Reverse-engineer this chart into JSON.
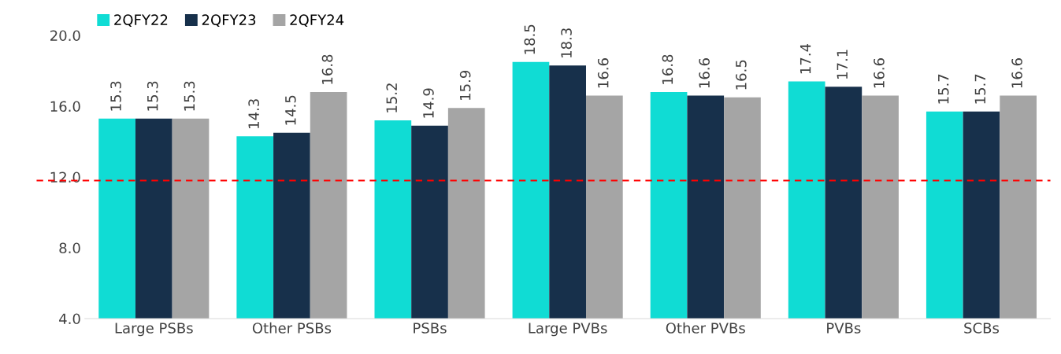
{
  "chart_data": {
    "type": "bar",
    "categories": [
      "Large PSBs",
      "Other PSBs",
      "PSBs",
      "Large PVBs",
      "Other PVBs",
      "PVBs",
      "SCBs"
    ],
    "series": [
      {
        "name": "2QFY22",
        "color": "#10dcd4",
        "values": [
          15.3,
          14.3,
          15.2,
          18.5,
          16.8,
          17.4,
          15.7
        ]
      },
      {
        "name": "2QFY23",
        "color": "#17304b",
        "values": [
          15.3,
          14.5,
          14.9,
          18.3,
          16.6,
          17.1,
          15.7
        ]
      },
      {
        "name": "2QFY24",
        "color": "#a5a5a5",
        "values": [
          15.3,
          16.8,
          15.9,
          16.6,
          16.5,
          16.6,
          16.6
        ]
      }
    ],
    "ylim": [
      4,
      20
    ],
    "yticks": [
      {
        "value": 4,
        "label": "4.0"
      },
      {
        "value": 8,
        "label": "8.0"
      },
      {
        "value": 12,
        "label": "12.0"
      },
      {
        "value": 16,
        "label": "16.0"
      },
      {
        "value": 20,
        "label": "20.0"
      }
    ],
    "ref_lines": [
      {
        "axis": "y",
        "value": 11.8,
        "label": null,
        "color": "#ff0000",
        "line_style": "dashed"
      }
    ],
    "data_labels": true,
    "grid": false,
    "legend": "top left"
  }
}
